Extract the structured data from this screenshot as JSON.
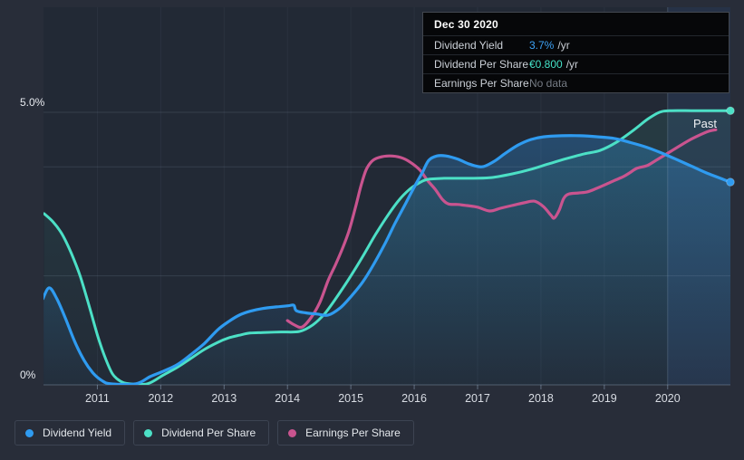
{
  "page": {
    "background": "#282d39"
  },
  "tooltip": {
    "date": "Dec 30 2020",
    "rows": [
      {
        "label": "Dividend Yield",
        "value": "3.7%",
        "suffix": "/yr",
        "value_color": "#3da2f5"
      },
      {
        "label": "Dividend Per Share",
        "value": "€0.800",
        "suffix": "/yr",
        "value_color": "#44e1c7"
      },
      {
        "label": "Earnings Per Share",
        "value": "No data",
        "suffix": "",
        "value_color": "#757b84"
      }
    ]
  },
  "legend": {
    "items": [
      {
        "label": "Dividend Yield",
        "color": "#2f9bf0"
      },
      {
        "label": "Dividend Per Share",
        "color": "#4ce0c6"
      },
      {
        "label": "Earnings Per Share",
        "color": "#c9548f"
      }
    ]
  },
  "annotations": {
    "past_label": "Past"
  },
  "chart_data": {
    "type": "line",
    "title": "Dividend history (yield and per-share) vs earnings per share, 2010–2020",
    "grid": true,
    "legend_position": "bottom-left",
    "x_axis": {
      "range": [
        2010.15,
        2020.99
      ],
      "ticks": [
        2011,
        2012,
        2013,
        2014,
        2015,
        2016,
        2017,
        2018,
        2019,
        2020
      ]
    },
    "y_axis": {
      "range": [
        0,
        5.25
      ],
      "unit": "percent on left axis; per-share series drawn on same normalized scale (no right-axis labels shown)",
      "labels": [
        {
          "text": "5.0%",
          "value": 5.0
        },
        {
          "text": "0%",
          "value": 0.0
        }
      ],
      "gridline_values": [
        5.0,
        4.0,
        2.0
      ]
    },
    "highlight_band": {
      "from_x": 2020.0,
      "overlay": "rgba(86,148,255,0.09)"
    },
    "series": [
      {
        "name": "Dividend Yield",
        "color": "#2f9bf0",
        "line_width": 3.2,
        "end_dot": true,
        "end_value_label": "3.7% /yr",
        "fill_opacity": [
          0.3,
          0.03
        ],
        "points": [
          [
            2010.14,
            1.58
          ],
          [
            2010.24,
            1.78
          ],
          [
            2010.36,
            1.58
          ],
          [
            2010.5,
            1.21
          ],
          [
            2010.64,
            0.8
          ],
          [
            2010.79,
            0.45
          ],
          [
            2010.93,
            0.22
          ],
          [
            2011.07,
            0.08
          ],
          [
            2011.21,
            0.02
          ],
          [
            2011.61,
            0.02
          ],
          [
            2011.83,
            0.15
          ],
          [
            2012.04,
            0.25
          ],
          [
            2012.26,
            0.37
          ],
          [
            2012.47,
            0.55
          ],
          [
            2012.69,
            0.76
          ],
          [
            2012.9,
            1.01
          ],
          [
            2013.07,
            1.16
          ],
          [
            2013.24,
            1.28
          ],
          [
            2013.41,
            1.35
          ],
          [
            2013.61,
            1.4
          ],
          [
            2013.83,
            1.43
          ],
          [
            2014.01,
            1.45
          ],
          [
            2014.1,
            1.46
          ],
          [
            2014.14,
            1.36
          ],
          [
            2014.29,
            1.32
          ],
          [
            2014.47,
            1.3
          ],
          [
            2014.64,
            1.28
          ],
          [
            2014.83,
            1.41
          ],
          [
            2015.01,
            1.63
          ],
          [
            2015.19,
            1.89
          ],
          [
            2015.36,
            2.21
          ],
          [
            2015.53,
            2.57
          ],
          [
            2015.7,
            2.97
          ],
          [
            2015.87,
            3.34
          ],
          [
            2016.01,
            3.65
          ],
          [
            2016.13,
            3.9
          ],
          [
            2016.23,
            4.12
          ],
          [
            2016.36,
            4.2
          ],
          [
            2016.5,
            4.2
          ],
          [
            2016.69,
            4.14
          ],
          [
            2016.87,
            4.05
          ],
          [
            2017.07,
            4.0
          ],
          [
            2017.26,
            4.1
          ],
          [
            2017.44,
            4.25
          ],
          [
            2017.64,
            4.4
          ],
          [
            2017.84,
            4.5
          ],
          [
            2018.04,
            4.55
          ],
          [
            2018.33,
            4.57
          ],
          [
            2018.61,
            4.57
          ],
          [
            2018.9,
            4.55
          ],
          [
            2019.16,
            4.52
          ],
          [
            2019.4,
            4.45
          ],
          [
            2019.64,
            4.37
          ],
          [
            2019.87,
            4.27
          ],
          [
            2020.11,
            4.15
          ],
          [
            2020.36,
            4.02
          ],
          [
            2020.61,
            3.89
          ],
          [
            2020.99,
            3.72
          ]
        ]
      },
      {
        "name": "Dividend Per Share",
        "color": "#4ce0c6",
        "line_width": 3.0,
        "end_dot": true,
        "end_value_label": "€0.800 /yr",
        "fill_opacity": [
          0.1,
          0.01
        ],
        "points": [
          [
            2010.16,
            3.14
          ],
          [
            2010.3,
            2.99
          ],
          [
            2010.44,
            2.77
          ],
          [
            2010.59,
            2.41
          ],
          [
            2010.73,
            1.99
          ],
          [
            2010.87,
            1.45
          ],
          [
            2011.01,
            0.88
          ],
          [
            2011.13,
            0.48
          ],
          [
            2011.24,
            0.2
          ],
          [
            2011.36,
            0.07
          ],
          [
            2011.5,
            0.02
          ],
          [
            2011.79,
            0.02
          ],
          [
            2012.04,
            0.18
          ],
          [
            2012.26,
            0.32
          ],
          [
            2012.47,
            0.48
          ],
          [
            2012.69,
            0.65
          ],
          [
            2012.9,
            0.78
          ],
          [
            2013.07,
            0.86
          ],
          [
            2013.24,
            0.91
          ],
          [
            2013.41,
            0.95
          ],
          [
            2013.61,
            0.96
          ],
          [
            2013.9,
            0.97
          ],
          [
            2014.19,
            0.98
          ],
          [
            2014.4,
            1.1
          ],
          [
            2014.59,
            1.31
          ],
          [
            2014.79,
            1.63
          ],
          [
            2014.99,
            1.98
          ],
          [
            2015.19,
            2.36
          ],
          [
            2015.39,
            2.76
          ],
          [
            2015.59,
            3.12
          ],
          [
            2015.76,
            3.39
          ],
          [
            2015.93,
            3.59
          ],
          [
            2016.07,
            3.7
          ],
          [
            2016.21,
            3.77
          ],
          [
            2016.47,
            3.79
          ],
          [
            2016.83,
            3.79
          ],
          [
            2017.19,
            3.8
          ],
          [
            2017.54,
            3.87
          ],
          [
            2017.83,
            3.95
          ],
          [
            2018.11,
            4.05
          ],
          [
            2018.4,
            4.15
          ],
          [
            2018.69,
            4.24
          ],
          [
            2018.93,
            4.3
          ],
          [
            2019.19,
            4.45
          ],
          [
            2019.47,
            4.68
          ],
          [
            2019.69,
            4.88
          ],
          [
            2019.87,
            5.0
          ],
          [
            2020.04,
            5.03
          ],
          [
            2020.4,
            5.03
          ],
          [
            2020.7,
            5.03
          ],
          [
            2020.99,
            5.03
          ]
        ]
      },
      {
        "name": "Earnings Per Share",
        "color": "#c9548f",
        "line_width": 3.2,
        "end_dot": false,
        "end_value_label": "No data",
        "fill_opacity": null,
        "points": [
          [
            2014.0,
            1.18
          ],
          [
            2014.11,
            1.1
          ],
          [
            2014.23,
            1.06
          ],
          [
            2014.37,
            1.23
          ],
          [
            2014.51,
            1.51
          ],
          [
            2014.64,
            1.91
          ],
          [
            2014.76,
            2.21
          ],
          [
            2014.86,
            2.48
          ],
          [
            2014.97,
            2.82
          ],
          [
            2015.07,
            3.24
          ],
          [
            2015.16,
            3.65
          ],
          [
            2015.24,
            3.94
          ],
          [
            2015.33,
            4.1
          ],
          [
            2015.44,
            4.17
          ],
          [
            2015.61,
            4.2
          ],
          [
            2015.79,
            4.17
          ],
          [
            2015.93,
            4.09
          ],
          [
            2016.09,
            3.94
          ],
          [
            2016.21,
            3.75
          ],
          [
            2016.33,
            3.59
          ],
          [
            2016.44,
            3.41
          ],
          [
            2016.54,
            3.32
          ],
          [
            2016.69,
            3.31
          ],
          [
            2016.83,
            3.29
          ],
          [
            2017.0,
            3.26
          ],
          [
            2017.19,
            3.19
          ],
          [
            2017.36,
            3.24
          ],
          [
            2017.54,
            3.29
          ],
          [
            2017.73,
            3.34
          ],
          [
            2017.9,
            3.37
          ],
          [
            2018.04,
            3.27
          ],
          [
            2018.16,
            3.11
          ],
          [
            2018.21,
            3.06
          ],
          [
            2018.29,
            3.21
          ],
          [
            2018.36,
            3.42
          ],
          [
            2018.44,
            3.5
          ],
          [
            2018.59,
            3.52
          ],
          [
            2018.73,
            3.54
          ],
          [
            2018.87,
            3.6
          ],
          [
            2019.01,
            3.67
          ],
          [
            2019.16,
            3.75
          ],
          [
            2019.3,
            3.82
          ],
          [
            2019.4,
            3.89
          ],
          [
            2019.51,
            3.97
          ],
          [
            2019.67,
            4.02
          ],
          [
            2019.79,
            4.1
          ],
          [
            2019.93,
            4.2
          ],
          [
            2020.07,
            4.3
          ],
          [
            2020.21,
            4.4
          ],
          [
            2020.36,
            4.5
          ],
          [
            2020.5,
            4.58
          ],
          [
            2020.64,
            4.65
          ],
          [
            2020.76,
            4.68
          ]
        ]
      }
    ]
  }
}
